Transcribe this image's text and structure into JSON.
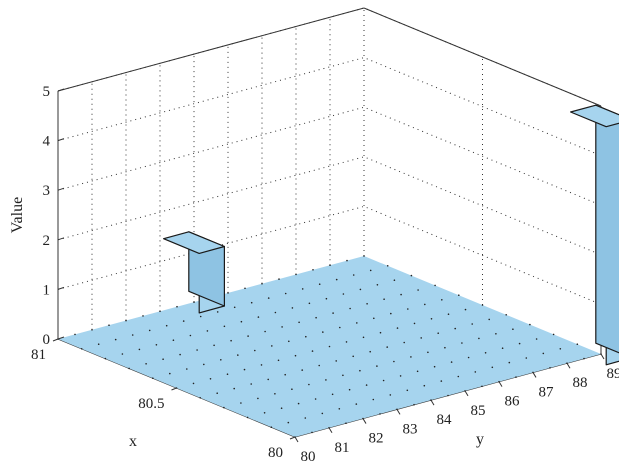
{
  "chart_data": {
    "type": "bar3d",
    "title": "",
    "xlabel": "x",
    "ylabel": "y",
    "zlabel": "Value",
    "x_ticks": [
      "80",
      "80.5",
      "81"
    ],
    "y_ticks": [
      "80",
      "81",
      "82",
      "83",
      "84",
      "85",
      "86",
      "87",
      "88",
      "89"
    ],
    "z_ticks": [
      "0",
      "1",
      "2",
      "3",
      "4",
      "5"
    ],
    "xlim": [
      80,
      81
    ],
    "ylim": [
      80,
      89
    ],
    "zlim": [
      0,
      5
    ],
    "grid": true,
    "bars": [
      {
        "x": 81,
        "y": 84,
        "value": 1.2
      },
      {
        "x": 80,
        "y": 89,
        "value": 4.8
      }
    ],
    "floor_value": 0,
    "colors": {
      "bar": "#a6d4ee",
      "bar_side": "#8ec3e3",
      "bar_edge": "#1a1a1a",
      "floor": "#a6d4ee"
    }
  }
}
